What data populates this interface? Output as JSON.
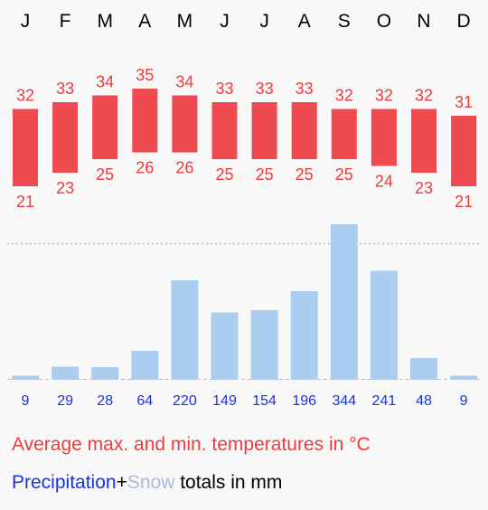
{
  "chart_data": {
    "type": "bar",
    "months": [
      "J",
      "F",
      "M",
      "A",
      "M",
      "J",
      "J",
      "A",
      "S",
      "O",
      "N",
      "D"
    ],
    "temperature": {
      "max": [
        32,
        33,
        34,
        35,
        34,
        33,
        33,
        33,
        32,
        32,
        32,
        31
      ],
      "min": [
        21,
        23,
        25,
        26,
        26,
        25,
        25,
        25,
        25,
        24,
        23,
        21
      ],
      "unit": "°C"
    },
    "precipitation": {
      "values": [
        9,
        29,
        28,
        64,
        220,
        149,
        154,
        196,
        344,
        241,
        48,
        9
      ],
      "unit": "mm",
      "reference_line": 300
    }
  },
  "colors": {
    "temp": "#ef4a4f",
    "temp_text": "#ef3b3b",
    "bar": "#abcdef",
    "precip_text": "#1a33e0",
    "snow_text": "#a9bbd8",
    "ref_line": "#c9a99a"
  },
  "legend": {
    "temperature": "Average max. and min. temperatures in °C",
    "precipitation": "Precipitation",
    "plus": "+",
    "snow": "Snow",
    "totals": " totals in mm"
  }
}
